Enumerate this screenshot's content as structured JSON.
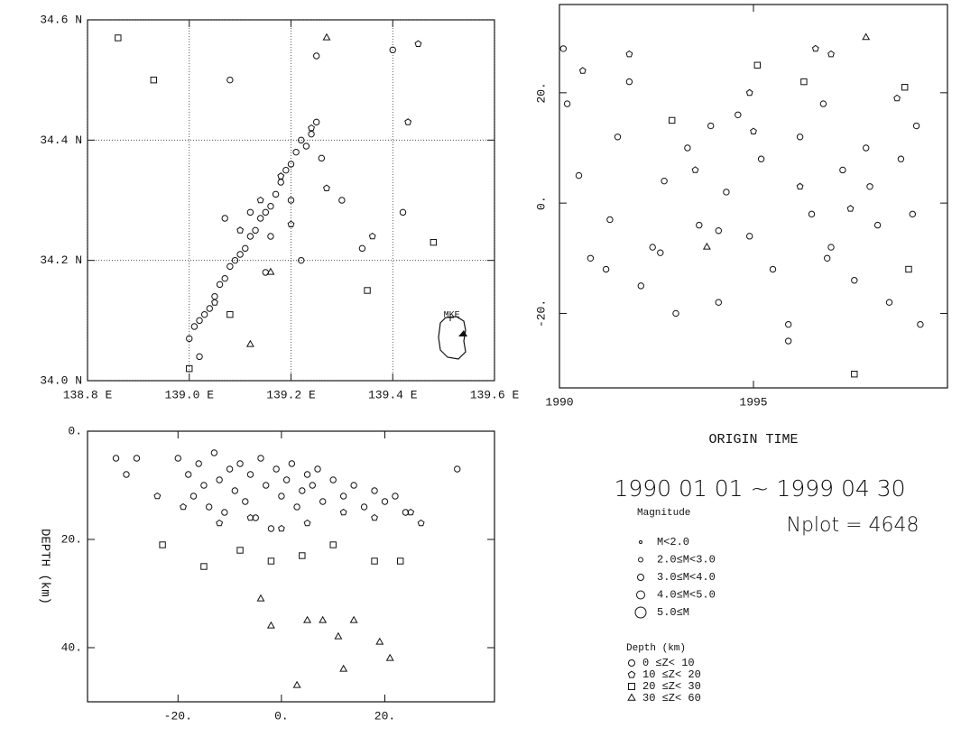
{
  "chart_data": [
    {
      "type": "scatter",
      "xlim": [
        138.8,
        139.6
      ],
      "ylim": [
        34.0,
        34.6
      ],
      "xticks": [
        {
          "value": 138.8,
          "label": "138.8 E"
        },
        {
          "value": 139.0,
          "label": "139.0 E"
        },
        {
          "value": 139.2,
          "label": "139.2 E"
        },
        {
          "value": 139.4,
          "label": "139.4 E"
        },
        {
          "value": 139.6,
          "label": "139.6 E"
        }
      ],
      "yticks": [
        {
          "value": 34.0,
          "label": "34.0 N"
        },
        {
          "value": 34.2,
          "label": "34.2 N"
        },
        {
          "value": 34.4,
          "label": "34.4 N"
        },
        {
          "value": 34.6,
          "label": "34.6 N"
        }
      ],
      "grid": true,
      "annotations": [
        {
          "text": "MKE",
          "x": 139.5,
          "y": 34.11
        }
      ],
      "series": [
        {
          "marker": "circle",
          "x": [
            139.0,
            139.01,
            139.02,
            139.03,
            139.04,
            139.05,
            139.06,
            139.07,
            139.08,
            139.09,
            139.1,
            139.11,
            139.12,
            139.13,
            139.14,
            139.15,
            139.16,
            139.17,
            139.18,
            139.19,
            139.2,
            139.21,
            139.22,
            139.23,
            139.24,
            139.25,
            139.26,
            139.12,
            139.16,
            139.2,
            139.07,
            139.02,
            139.25,
            139.3,
            139.34,
            139.4,
            139.42,
            139.08,
            139.15,
            139.22
          ],
          "values": [
            34.07,
            34.09,
            34.1,
            34.11,
            34.12,
            34.14,
            34.16,
            34.17,
            34.19,
            34.2,
            34.21,
            34.22,
            34.24,
            34.25,
            34.27,
            34.28,
            34.29,
            34.31,
            34.33,
            34.35,
            34.36,
            34.38,
            34.4,
            34.39,
            34.41,
            34.43,
            34.37,
            34.28,
            34.24,
            34.3,
            34.27,
            34.04,
            34.54,
            34.3,
            34.22,
            34.55,
            34.28,
            34.5,
            34.18,
            34.2
          ]
        },
        {
          "marker": "pentagon",
          "x": [
            139.05,
            139.1,
            139.18,
            139.24,
            139.27,
            139.36,
            139.43,
            139.14,
            139.2,
            139.45
          ],
          "values": [
            34.13,
            34.25,
            34.34,
            34.42,
            34.32,
            34.24,
            34.43,
            34.3,
            34.26,
            34.56
          ]
        },
        {
          "marker": "square",
          "x": [
            138.86,
            138.93,
            139.08,
            139.35,
            139.48,
            139.0
          ],
          "values": [
            34.57,
            34.5,
            34.11,
            34.15,
            34.23,
            34.02
          ]
        },
        {
          "marker": "triangle",
          "x": [
            139.16,
            139.27,
            139.12
          ],
          "values": [
            34.18,
            34.57,
            34.06
          ]
        }
      ]
    },
    {
      "type": "scatter",
      "y_label": "DEPTH (km)",
      "xlim": [
        -37.5,
        41.2
      ],
      "ylim": [
        0,
        50
      ],
      "y_inverted": true,
      "xticks": [
        {
          "value": -20,
          "label": "-20."
        },
        {
          "value": 0,
          "label": "0."
        },
        {
          "value": 20,
          "label": "20."
        }
      ],
      "yticks": [
        {
          "value": 0,
          "label": "0."
        },
        {
          "value": 20,
          "label": "20."
        },
        {
          "value": 40,
          "label": "40."
        }
      ],
      "grid": false,
      "series": [
        {
          "marker": "circle",
          "x": [
            -20,
            -18,
            -17,
            -16,
            -15,
            -14,
            -13,
            -12,
            -11,
            -10,
            -9,
            -8,
            -7,
            -6,
            -5,
            -4,
            -3,
            -2,
            -1,
            0,
            1,
            2,
            3,
            4,
            5,
            6,
            7,
            8,
            10,
            12,
            14,
            16,
            18,
            20,
            22,
            24,
            -28,
            -32,
            -30,
            34
          ],
          "values": [
            5,
            8,
            12,
            6,
            10,
            14,
            4,
            9,
            15,
            7,
            11,
            6,
            13,
            8,
            16,
            5,
            10,
            18,
            7,
            12,
            9,
            6,
            14,
            11,
            8,
            10,
            7,
            13,
            9,
            12,
            10,
            14,
            11,
            13,
            12,
            15,
            5,
            5,
            8,
            7
          ]
        },
        {
          "marker": "pentagon",
          "x": [
            -19,
            -12,
            -6,
            0,
            5,
            12,
            18,
            25,
            27,
            -24
          ],
          "values": [
            14,
            17,
            16,
            18,
            17,
            15,
            16,
            15,
            17,
            12
          ]
        },
        {
          "marker": "square",
          "x": [
            -15,
            -8,
            -2,
            4,
            10,
            18,
            -23,
            23
          ],
          "values": [
            25,
            22,
            24,
            23,
            21,
            24,
            21,
            24
          ]
        },
        {
          "marker": "triangle",
          "x": [
            -4,
            -2,
            5,
            8,
            11,
            14,
            19,
            21,
            3,
            12
          ],
          "values": [
            31,
            36,
            35,
            35,
            38,
            35,
            39,
            42,
            47,
            44
          ]
        }
      ]
    },
    {
      "type": "scatter",
      "x_label": "ORIGIN TIME",
      "xlim": [
        1990,
        2000
      ],
      "ylim": [
        -33.5,
        36
      ],
      "xticks": [
        1990,
        1995
      ],
      "yticks": [
        {
          "value": -20,
          "label": "-20."
        },
        {
          "value": 0,
          "label": "0."
        },
        {
          "value": 20,
          "label": "20."
        }
      ],
      "grid": false,
      "series": [
        {
          "marker": "circle",
          "x": [
            1990.1,
            1990.5,
            1990.8,
            1991.2,
            1991.5,
            1991.8,
            1992.1,
            1992.4,
            1992.7,
            1993.0,
            1993.3,
            1993.6,
            1993.9,
            1994.1,
            1994.3,
            1994.6,
            1994.9,
            1995.2,
            1995.5,
            1995.9,
            1996.2,
            1996.5,
            1996.8,
            1997.0,
            1997.3,
            1997.6,
            1997.9,
            1998.2,
            1998.5,
            1998.8,
            1999.1,
            1999.3,
            1991.3,
            1992.6,
            1994.1,
            1995.9,
            1996.9,
            1998.0,
            1990.2,
            1999.2
          ],
          "values": [
            28,
            5,
            -10,
            -12,
            12,
            22,
            -15,
            -8,
            4,
            -20,
            10,
            -4,
            14,
            -18,
            2,
            16,
            -6,
            8,
            -12,
            -25,
            12,
            -2,
            18,
            -8,
            6,
            -14,
            10,
            -4,
            -18,
            8,
            -2,
            -22,
            -3,
            -9,
            -5,
            -22,
            -10,
            3,
            18,
            14
          ]
        },
        {
          "marker": "pentagon",
          "x": [
            1991.8,
            1994.9,
            1996.6,
            1997.0,
            1998.7,
            1993.5,
            1995.0,
            1996.2,
            1997.5,
            1990.6
          ],
          "values": [
            27,
            20,
            28,
            27,
            19,
            6,
            13,
            3,
            -1,
            24
          ]
        },
        {
          "marker": "square",
          "x": [
            1995.1,
            1996.3,
            1997.6,
            1998.9,
            1999.0,
            1992.9
          ],
          "values": [
            25,
            22,
            -31,
            21,
            -12,
            15
          ]
        },
        {
          "marker": "triangle",
          "x": [
            1997.9,
            1993.8
          ],
          "values": [
            30,
            -8
          ]
        }
      ]
    }
  ],
  "period": "1990 01 01 ~ 1999 04 30",
  "nplot": "Nplot = 4648",
  "legend": {
    "magnitude_title": "Magnitude",
    "magnitude": [
      "M<2.0",
      "2.0≤M<3.0",
      "3.0≤M<4.0",
      "4.0≤M<5.0",
      "5.0≤M"
    ],
    "depth_title": "Depth (km)",
    "depth": [
      "0 ≤Z< 10",
      "10 ≤Z< 20",
      "20 ≤Z< 30",
      "30 ≤Z< 60"
    ]
  }
}
